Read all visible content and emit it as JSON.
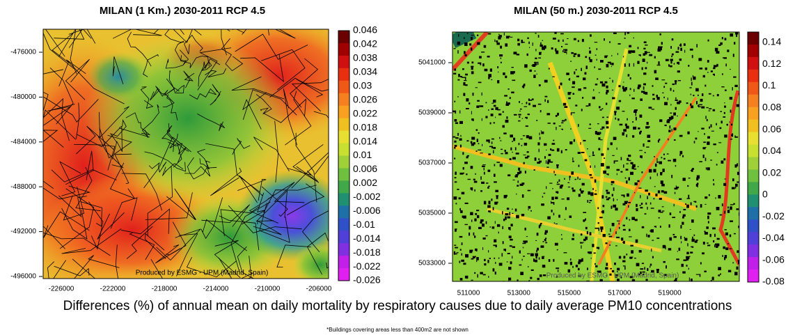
{
  "panels": [
    {
      "title": "MILAN (1 Km.)  2030-2011  RCP 4.5",
      "yticks": [
        "-476000",
        "-480000",
        "-484000",
        "-488000",
        "-492000",
        "-496000"
      ],
      "xticks": [
        "-226000",
        "-222000",
        "-218000",
        "-214000",
        "-210000",
        "-206000"
      ],
      "colorbar": [
        "0.046",
        "0.042",
        "0.038",
        "0.034",
        "0.03",
        "0.026",
        "0.022",
        "0.018",
        "0.014",
        "0.01",
        "0.006",
        "0.002",
        "-0.002",
        "-0.006",
        "-0.01",
        "-0.014",
        "-0.018",
        "-0.022",
        "-0.026"
      ],
      "watermark": "Produced by ESMG - UPM (Madrid, Spain)"
    },
    {
      "title": "MILAN (50 m.)  2030-2011  RCP 4.5",
      "yticks": [
        "5041000",
        "5039000",
        "5037000",
        "5035000",
        "5033000"
      ],
      "xticks": [
        "511000",
        "513000",
        "515000",
        "517000",
        "519000"
      ],
      "colorbar": [
        "0.14",
        "0.12",
        "0.1",
        "0.08",
        "0.06",
        "0.04",
        "0.02",
        "0",
        "-0.02",
        "-0.04",
        "-0.06",
        "-0.08"
      ],
      "watermark": "Produced by ESMG - UPM (Madrid, Spain)"
    }
  ],
  "caption": "Differences (%) of annual mean on  daily mortality by respiratory causes due to daily average PM10 concentrations",
  "footnote": "*Buildings covering areas less than 400m2 are not shown"
}
